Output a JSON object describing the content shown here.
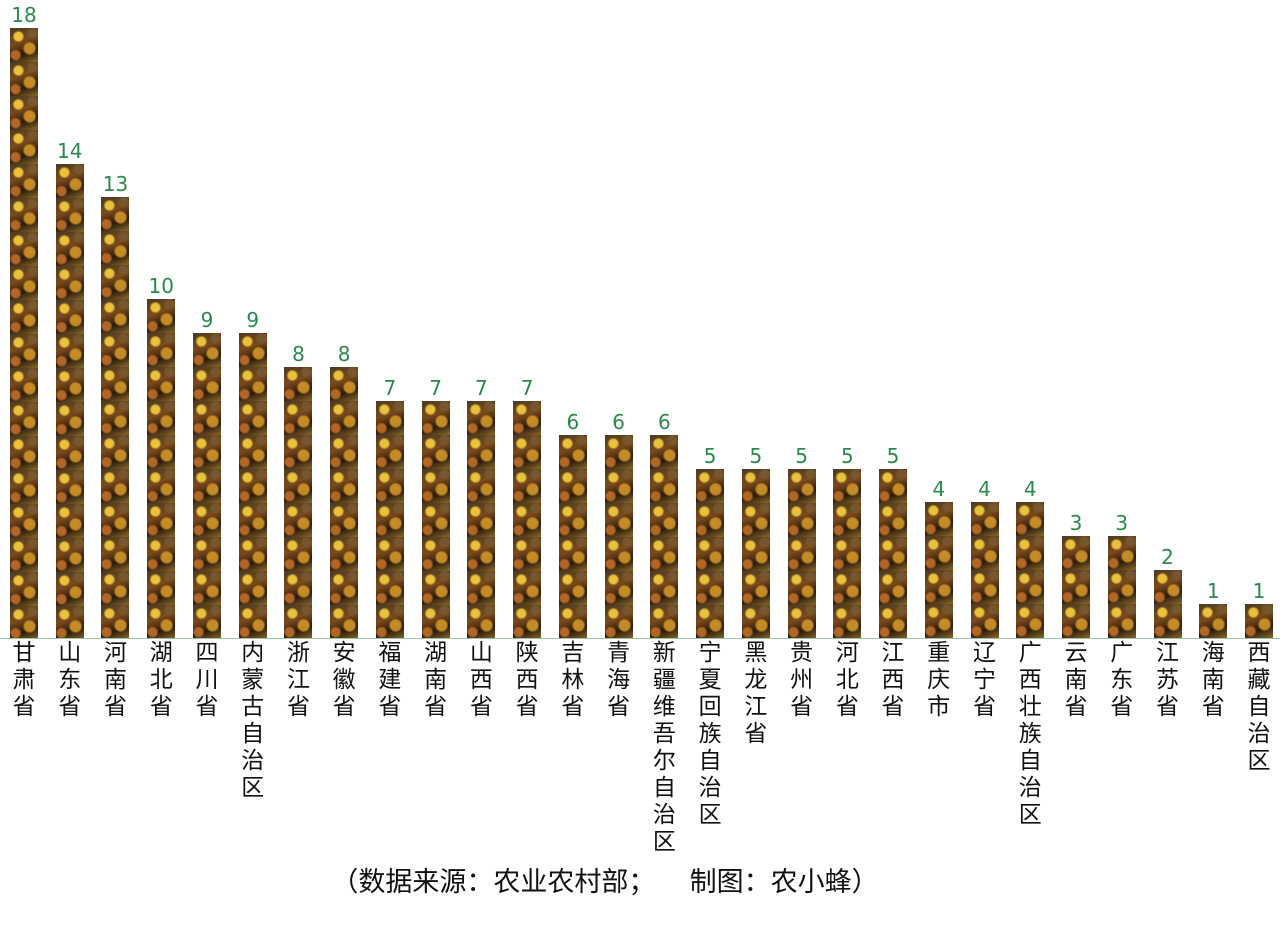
{
  "chart_data": {
    "type": "bar",
    "categories": [
      "甘肃省",
      "山东省",
      "河南省",
      "湖北省",
      "四川省",
      "内蒙古自治区",
      "浙江省",
      "安徽省",
      "福建省",
      "湖南省",
      "山西省",
      "陕西省",
      "吉林省",
      "青海省",
      "新疆维吾尔自治区",
      "宁夏回族自治区",
      "黑龙江省",
      "贵州省",
      "河北省",
      "江西省",
      "重庆市",
      "辽宁省",
      "广西壮族自治区",
      "云南省",
      "广东省",
      "江苏省",
      "海南省",
      "西藏自治区"
    ],
    "values": [
      18,
      14,
      13,
      10,
      9,
      9,
      8,
      8,
      7,
      7,
      7,
      7,
      6,
      6,
      6,
      5,
      5,
      5,
      5,
      5,
      4,
      4,
      4,
      3,
      3,
      2,
      1,
      1
    ],
    "ylim": [
      0,
      18
    ],
    "grid": false,
    "value_label_color": "#2a8a4a",
    "bar_fill": "autumn-leaves-image-texture"
  },
  "caption": "（数据来源：农业农村部；    制图：农小蜂）"
}
